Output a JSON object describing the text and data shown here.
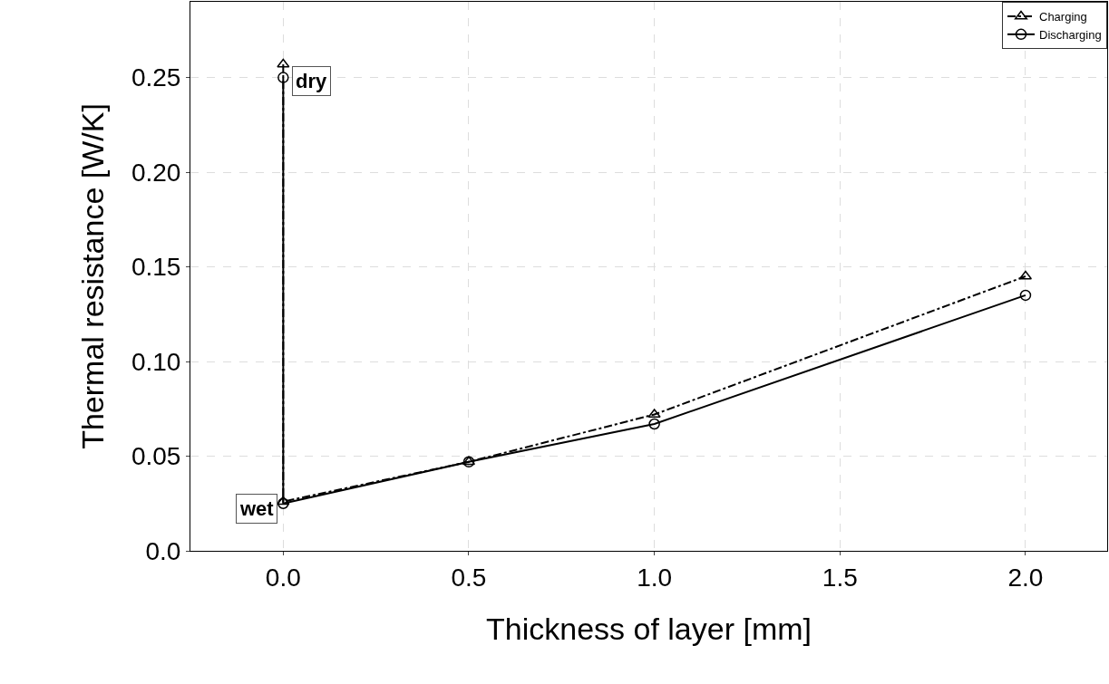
{
  "chart_data": {
    "type": "line",
    "xlabel": "Thickness of layer [mm]",
    "ylabel": "Thermal resistance [W/K]",
    "xlim": [
      -0.25,
      2.22
    ],
    "xticks": [
      {
        "value": 0,
        "label": "0.0"
      },
      0.5,
      {
        "value": 1,
        "label": "1.0"
      },
      1.5,
      {
        "value": 2,
        "label": "2.0"
      }
    ],
    "ylim": [
      0,
      0.29
    ],
    "yticks": [
      {
        "value": 0,
        "label": "0.0"
      },
      0.05,
      {
        "value": 0.1,
        "label": "0.10"
      },
      0.15,
      {
        "value": 0.2,
        "label": "0.20"
      },
      0.25
    ],
    "grid": true,
    "legend": "top right",
    "series": [
      {
        "name": "Charging",
        "color": "#000000",
        "marker": "triangle",
        "line_style": "dashed",
        "x": [
          0,
          0,
          0.5,
          1,
          2
        ],
        "values": [
          0.257,
          0.026,
          0.047,
          0.072,
          0.145
        ]
      },
      {
        "name": "Discharging",
        "color": "#000000",
        "marker": "circle",
        "line_style": "solid",
        "x": [
          0,
          0,
          0.5,
          1,
          2
        ],
        "values": [
          0.25,
          0.025,
          0.047,
          0.067,
          0.135
        ]
      }
    ],
    "annotations": [
      {
        "text": "dry",
        "x": 0,
        "y": 0.25
      },
      {
        "text": "wet",
        "x": 0,
        "y": 0.025
      }
    ]
  }
}
